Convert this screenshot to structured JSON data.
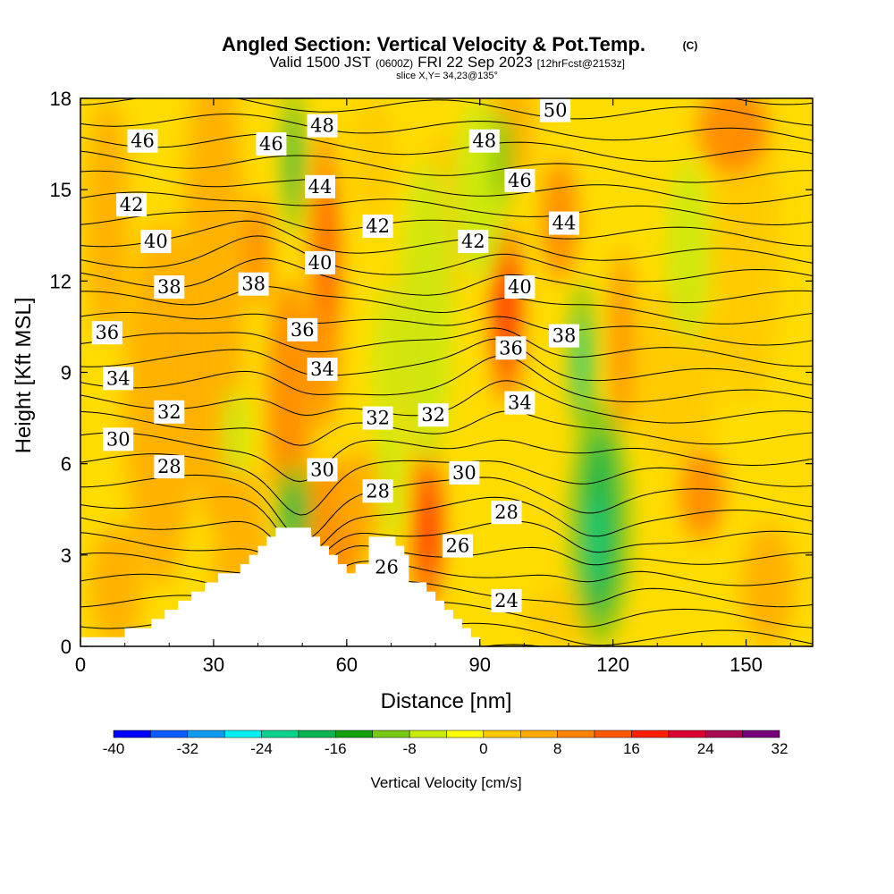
{
  "chart_data": {
    "type": "heatmap",
    "title": "Angled Section: Vertical Velocity & Pot.Temp.",
    "title_mark": "(C)",
    "subtitle_parts": [
      "Valid 1500 JST",
      "(0600Z)",
      "FRI 22 Sep 2023",
      "[12hrFcst@2153z]"
    ],
    "slice_text": "slice X,Y= 34,23@135°",
    "xlabel": "Distance [nm]",
    "ylabel": "Height [Kft MSL]",
    "xlim": [
      0,
      165
    ],
    "ylim": [
      0,
      18
    ],
    "x_ticks": [
      "0",
      "30",
      "60",
      "90",
      "120",
      "150"
    ],
    "y_ticks": [
      "0",
      "3",
      "6",
      "9",
      "12",
      "15",
      "18"
    ],
    "colorbar": {
      "label": "Vertical Velocity [cm/s]",
      "tick_labels": [
        "-40",
        "-32",
        "-24",
        "-16",
        "-8",
        "0",
        "8",
        "16",
        "24",
        "32"
      ],
      "levels": [
        -40,
        -36,
        -32,
        -28,
        -24,
        -20,
        -16,
        -12,
        -8,
        -4,
        0,
        4,
        8,
        12,
        16,
        20,
        24,
        28,
        32
      ],
      "colors": [
        "#0000ff",
        "#0a5cff",
        "#0f9bf0",
        "#00f0f0",
        "#0ad28c",
        "#0ab450",
        "#14a00a",
        "#78c814",
        "#c8eb0a",
        "#ffff00",
        "#ffc800",
        "#ffaa00",
        "#ff8200",
        "#ff5a00",
        "#ff1e00",
        "#dc0032",
        "#aa0a50",
        "#780078"
      ]
    },
    "theta_levels": [
      22,
      23,
      24,
      25,
      26,
      27,
      28,
      29,
      30,
      31,
      32,
      33,
      34,
      35,
      36,
      37,
      38,
      39,
      40,
      41,
      42,
      43,
      44,
      45,
      46,
      47,
      48,
      49,
      50,
      51
    ],
    "theta_labels": [
      {
        "text": "46",
        "x": 14,
        "y": 16.6
      },
      {
        "text": "42",
        "x": 11.5,
        "y": 14.5
      },
      {
        "text": "40",
        "x": 17,
        "y": 13.3
      },
      {
        "text": "38",
        "x": 20,
        "y": 11.8
      },
      {
        "text": "36",
        "x": 6,
        "y": 10.3
      },
      {
        "text": "34",
        "x": 8.5,
        "y": 8.8
      },
      {
        "text": "32",
        "x": 20,
        "y": 7.7
      },
      {
        "text": "30",
        "x": 8.5,
        "y": 6.8
      },
      {
        "text": "28",
        "x": 20,
        "y": 5.9
      },
      {
        "text": "46",
        "x": 43,
        "y": 16.5
      },
      {
        "text": "48",
        "x": 54.5,
        "y": 17.1
      },
      {
        "text": "44",
        "x": 54,
        "y": 15.1
      },
      {
        "text": "38",
        "x": 39,
        "y": 11.9
      },
      {
        "text": "40",
        "x": 54,
        "y": 12.6
      },
      {
        "text": "36",
        "x": 50,
        "y": 10.4
      },
      {
        "text": "34",
        "x": 54.5,
        "y": 9.1
      },
      {
        "text": "30",
        "x": 54.5,
        "y": 5.8
      },
      {
        "text": "42",
        "x": 67,
        "y": 13.8
      },
      {
        "text": "32",
        "x": 67,
        "y": 7.5
      },
      {
        "text": "28",
        "x": 67,
        "y": 5.1
      },
      {
        "text": "26",
        "x": 69,
        "y": 2.6
      },
      {
        "text": "48",
        "x": 91,
        "y": 16.6
      },
      {
        "text": "42",
        "x": 88.5,
        "y": 13.3
      },
      {
        "text": "32",
        "x": 79.5,
        "y": 7.6
      },
      {
        "text": "30",
        "x": 86.5,
        "y": 5.7
      },
      {
        "text": "26",
        "x": 85,
        "y": 3.3
      },
      {
        "text": "50",
        "x": 107,
        "y": 17.6
      },
      {
        "text": "46",
        "x": 99,
        "y": 15.3
      },
      {
        "text": "44",
        "x": 109,
        "y": 13.9
      },
      {
        "text": "40",
        "x": 99,
        "y": 11.8
      },
      {
        "text": "38",
        "x": 109,
        "y": 10.2
      },
      {
        "text": "36",
        "x": 97,
        "y": 9.8
      },
      {
        "text": "34",
        "x": 99,
        "y": 8.0
      },
      {
        "text": "28",
        "x": 96,
        "y": 4.4
      },
      {
        "text": "24",
        "x": 96,
        "y": 1.5
      }
    ],
    "terrain_profile_kft": [
      [
        0,
        0.3
      ],
      [
        10,
        0.3
      ],
      [
        10,
        0.6
      ],
      [
        16,
        0.6
      ],
      [
        16,
        0.9
      ],
      [
        19,
        0.9
      ],
      [
        19,
        1.2
      ],
      [
        22,
        1.2
      ],
      [
        22,
        1.5
      ],
      [
        25,
        1.5
      ],
      [
        25,
        1.8
      ],
      [
        28,
        1.8
      ],
      [
        28,
        2.1
      ],
      [
        31,
        2.1
      ],
      [
        31,
        2.4
      ],
      [
        36,
        2.4
      ],
      [
        36,
        2.7
      ],
      [
        38,
        2.7
      ],
      [
        38,
        3.0
      ],
      [
        40,
        3.0
      ],
      [
        40,
        3.3
      ],
      [
        42,
        3.3
      ],
      [
        42,
        3.6
      ],
      [
        44,
        3.6
      ],
      [
        44,
        3.9
      ],
      [
        52,
        3.9
      ],
      [
        52,
        3.6
      ],
      [
        54,
        3.6
      ],
      [
        54,
        3.3
      ],
      [
        56,
        3.3
      ],
      [
        56,
        3.0
      ],
      [
        58,
        3.0
      ],
      [
        58,
        2.7
      ],
      [
        60,
        2.7
      ],
      [
        60,
        2.4
      ],
      [
        62,
        2.4
      ],
      [
        62,
        2.7
      ],
      [
        65,
        2.7
      ],
      [
        65,
        3.6
      ],
      [
        71,
        3.6
      ],
      [
        71,
        3.3
      ],
      [
        73,
        3.3
      ],
      [
        73,
        3.0
      ],
      [
        74,
        3.0
      ],
      [
        74,
        2.1
      ],
      [
        78,
        2.1
      ],
      [
        78,
        1.8
      ],
      [
        80,
        1.8
      ],
      [
        80,
        1.5
      ],
      [
        82,
        1.5
      ],
      [
        82,
        1.2
      ],
      [
        84,
        1.2
      ],
      [
        84,
        0.9
      ],
      [
        86,
        0.9
      ],
      [
        86,
        0.6
      ],
      [
        88,
        0.6
      ],
      [
        88,
        0.3
      ],
      [
        90,
        0.3
      ],
      [
        90,
        0
      ]
    ]
  }
}
